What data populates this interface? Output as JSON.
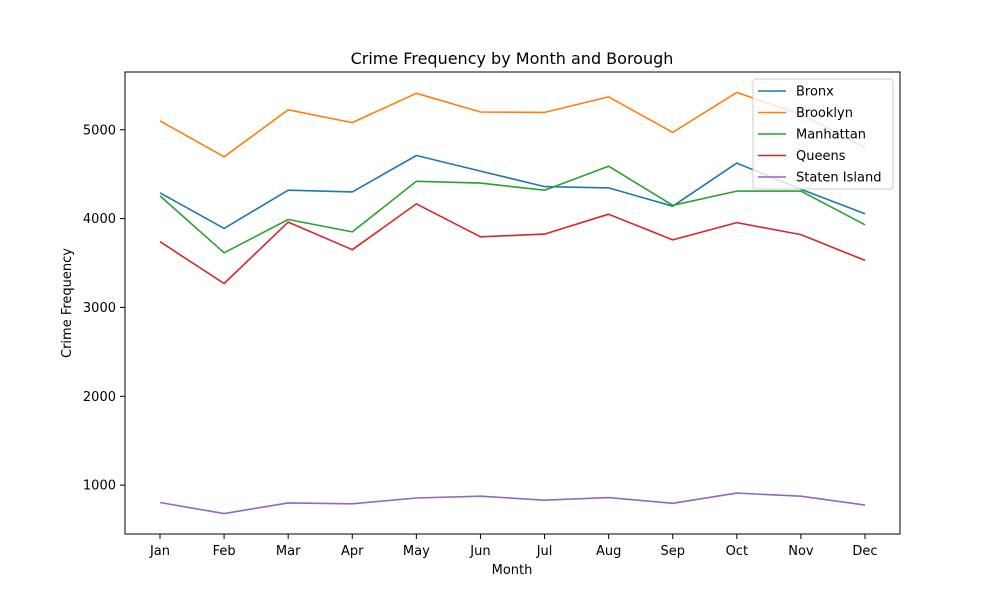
{
  "chart_data": {
    "type": "line",
    "title": "Crime Frequency by Month and Borough",
    "xlabel": "Month",
    "ylabel": "Crime Frequency",
    "categories": [
      "Jan",
      "Feb",
      "Mar",
      "Apr",
      "May",
      "Jun",
      "Jul",
      "Aug",
      "Sep",
      "Oct",
      "Nov",
      "Dec"
    ],
    "ylim": [
      450,
      5650
    ],
    "yticks": [
      1000,
      2000,
      3000,
      4000,
      5000
    ],
    "grid": false,
    "legend_position": "top-right",
    "series": [
      {
        "name": "Bronx",
        "color": "#1f77b4",
        "values": [
          4290,
          3890,
          4320,
          4300,
          4710,
          4535,
          4360,
          4345,
          4140,
          4625,
          4330,
          4055
        ]
      },
      {
        "name": "Brooklyn",
        "color": "#ff7f0e",
        "values": [
          5100,
          4695,
          5225,
          5080,
          5410,
          5200,
          5195,
          5370,
          4970,
          5420,
          5170,
          4800
        ]
      },
      {
        "name": "Manhattan",
        "color": "#2ca02c",
        "values": [
          4255,
          3615,
          3990,
          3850,
          4420,
          4400,
          4320,
          4590,
          4150,
          4310,
          4310,
          3930
        ]
      },
      {
        "name": "Queens",
        "color": "#d62728",
        "values": [
          3740,
          3270,
          3960,
          3650,
          4165,
          3795,
          3825,
          4050,
          3760,
          3955,
          3820,
          3530
        ]
      },
      {
        "name": "Staten Island",
        "color": "#9467bd",
        "values": [
          805,
          680,
          800,
          790,
          855,
          875,
          830,
          860,
          795,
          910,
          875,
          775
        ]
      }
    ]
  }
}
